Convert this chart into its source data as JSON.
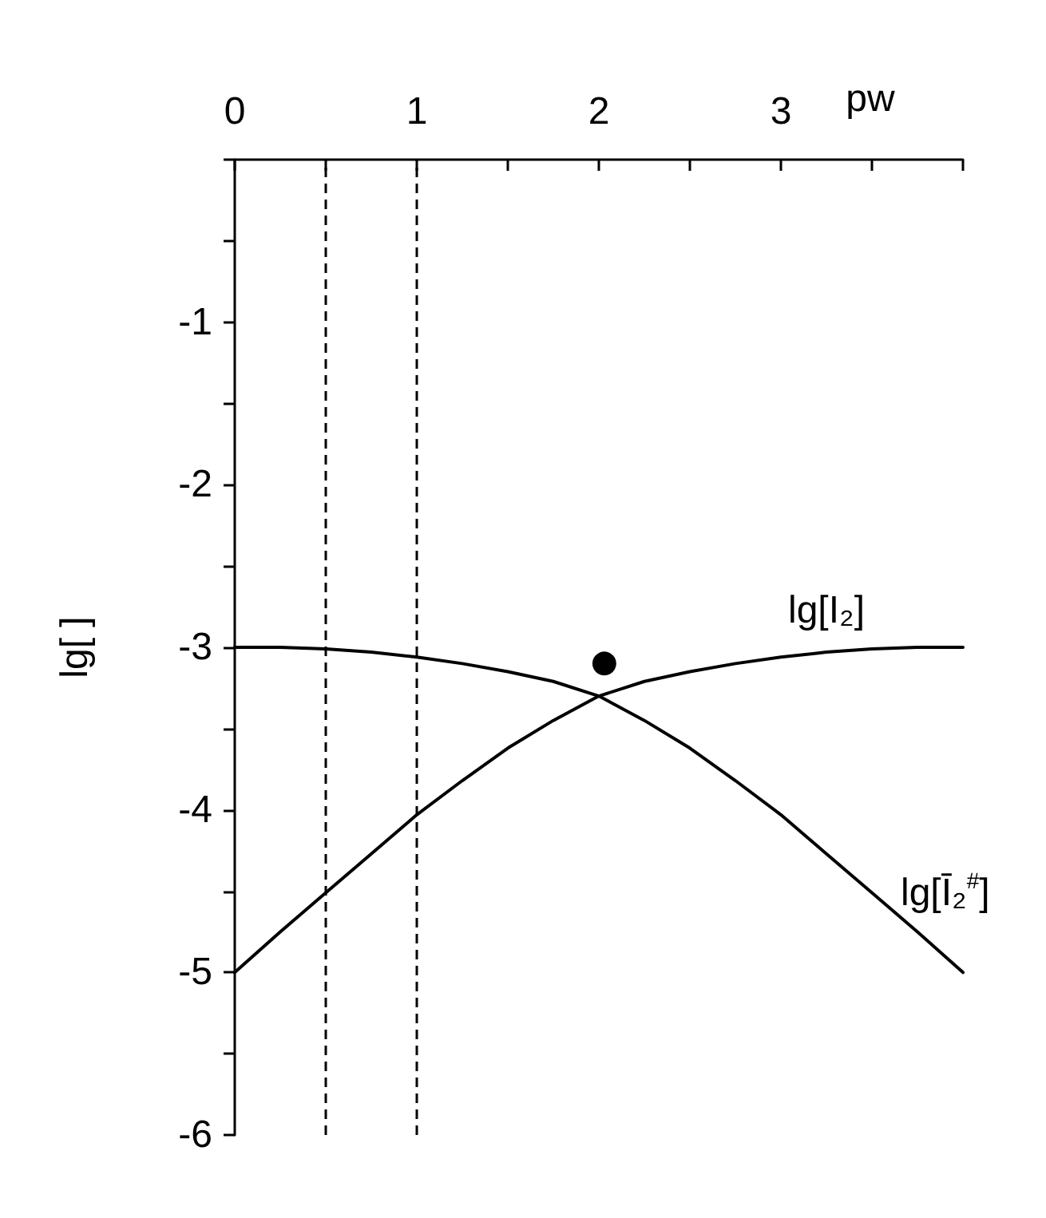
{
  "chart_data": {
    "type": "line",
    "xlabel": "pw",
    "ylabel": "lg[ ]",
    "xlim": [
      0,
      4
    ],
    "ylim": [
      -6,
      0
    ],
    "xticks": [
      0,
      {
        "value": 0.5,
        "label": null
      },
      1,
      {
        "value": 1.5,
        "label": null
      },
      2,
      {
        "value": 2.5,
        "label": null
      },
      3,
      {
        "value": 3.5,
        "label": null
      },
      {
        "value": 4,
        "label": null
      }
    ],
    "yticks": [
      {
        "value": 0,
        "label": null
      },
      {
        "value": -0.5,
        "label": null
      },
      -1,
      {
        "value": -1.5,
        "label": null
      },
      -2,
      {
        "value": -2.5,
        "label": null
      },
      -3,
      {
        "value": -3.5,
        "label": null
      },
      -4,
      {
        "value": -4.5,
        "label": null
      },
      -5,
      {
        "value": -5.5,
        "label": null
      },
      -6
    ],
    "grid": false,
    "legend": false,
    "marker": "none",
    "ref_lines": [
      {
        "axis": "x",
        "value": 0.5,
        "color": "#000000",
        "line_style": "dashed"
      },
      {
        "axis": "x",
        "value": 1,
        "color": "#000000",
        "line_style": "dashed"
      }
    ],
    "series": [
      {
        "name": "lg[I₂]",
        "color": "#000000",
        "x": [
          0,
          0.25,
          0.5,
          0.75,
          1,
          1.25,
          1.5,
          1.75,
          2,
          2.25,
          2.5,
          2.75,
          3,
          3.25,
          3.5,
          3.75,
          4
        ],
        "values": [
          -5,
          -4.75,
          -4.51,
          -4.27,
          -4.03,
          -3.82,
          -3.62,
          -3.45,
          -3.3,
          -3.21,
          -3.15,
          -3.1,
          -3.06,
          -3.03,
          -3.01,
          -3.0,
          -3
        ]
      },
      {
        "name": "lg[Ī₂$^{#}$]",
        "color": "#000000",
        "x": [
          0,
          0.25,
          0.5,
          0.75,
          1,
          1.25,
          1.5,
          1.75,
          2,
          2.25,
          2.5,
          2.75,
          3,
          3.25,
          3.5,
          3.75,
          4
        ],
        "values": [
          -3,
          -3.0,
          -3.01,
          -3.03,
          -3.06,
          -3.1,
          -3.15,
          -3.21,
          -3.3,
          -3.45,
          -3.62,
          -3.82,
          -4.03,
          -4.27,
          -4.51,
          -4.75,
          -5
        ]
      },
      {
        "type": "scatter",
        "color": "#000000",
        "marker": "circle",
        "x": [
          2.03
        ],
        "values": [
          -3.1
        ]
      }
    ]
  }
}
